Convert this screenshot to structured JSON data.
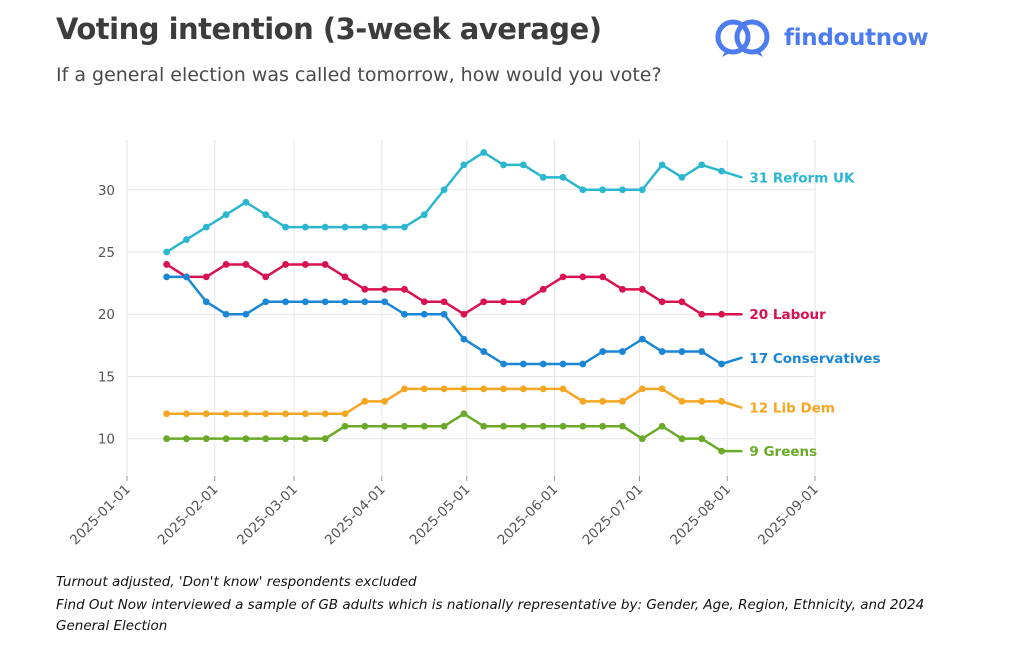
{
  "header": {
    "title": "Voting intention (3-week average)",
    "subtitle": "If a general election was called tomorrow, how would you vote?"
  },
  "logo": {
    "text": "findoutnow",
    "color": "#4c7cf0"
  },
  "footnotes": {
    "line1": "Turnout adjusted, 'Don't know' respondents excluded",
    "line2": "Find Out Now interviewed a sample of GB adults which is nationally representative by: Gender, Age, Region, Ethnicity, and 2024 General Election"
  },
  "chart_data": {
    "type": "line",
    "title": "Voting intention (3-week average)",
    "xlabel": "",
    "ylabel": "",
    "ylim": [
      7,
      34
    ],
    "yticks": [
      10,
      15,
      20,
      25,
      30
    ],
    "x_range_days": [
      0,
      243
    ],
    "xticks": [
      {
        "label": "2025-01-01",
        "day": 0
      },
      {
        "label": "2025-02-01",
        "day": 31
      },
      {
        "label": "2025-03-01",
        "day": 59
      },
      {
        "label": "2025-04-01",
        "day": 90
      },
      {
        "label": "2025-05-01",
        "day": 120
      },
      {
        "label": "2025-06-01",
        "day": 151
      },
      {
        "label": "2025-07-01",
        "day": 181
      },
      {
        "label": "2025-08-01",
        "day": 212
      },
      {
        "label": "2025-09-01",
        "day": 243
      }
    ],
    "x_days": [
      14,
      21,
      28,
      35,
      42,
      49,
      56,
      63,
      70,
      77,
      84,
      91,
      98,
      105,
      112,
      119,
      126,
      133,
      140,
      147,
      154,
      161,
      168,
      175,
      182,
      189,
      196,
      203,
      210,
      217
    ],
    "series": [
      {
        "name": "Reform UK",
        "label": "31 Reform UK",
        "color": "#2ab7cf",
        "values": [
          25,
          26,
          27,
          28,
          29,
          28,
          27,
          27,
          27,
          27,
          27,
          27,
          27,
          28,
          30,
          32,
          33,
          32,
          32,
          31,
          31,
          30,
          30,
          30,
          30,
          32,
          31,
          32,
          31.5,
          31
        ]
      },
      {
        "name": "Labour",
        "label": "20 Labour",
        "color": "#d9114f",
        "values": [
          24,
          23,
          23,
          24,
          24,
          23,
          24,
          24,
          24,
          23,
          22,
          22,
          22,
          21,
          21,
          20,
          21,
          21,
          21,
          22,
          23,
          23,
          23,
          22,
          22,
          21,
          21,
          20,
          20,
          20
        ]
      },
      {
        "name": "Conservatives",
        "label": "17 Conservatives",
        "color": "#1a86d6",
        "values": [
          23,
          23,
          21,
          20,
          20,
          21,
          21,
          21,
          21,
          21,
          21,
          21,
          20,
          20,
          20,
          18,
          17,
          16,
          16,
          16,
          16,
          16,
          17,
          17,
          18,
          17,
          17,
          17,
          16,
          16.5
        ]
      },
      {
        "name": "Lib Dem",
        "label": "12 Lib Dem",
        "color": "#f5a623",
        "values": [
          12,
          12,
          12,
          12,
          12,
          12,
          12,
          12,
          12,
          12,
          13,
          13,
          14,
          14,
          14,
          14,
          14,
          14,
          14,
          14,
          14,
          13,
          13,
          13,
          14,
          14,
          13,
          13,
          13,
          12.5
        ]
      },
      {
        "name": "Greens",
        "label": "9 Greens",
        "color": "#6aaa28",
        "values": [
          10,
          10,
          10,
          10,
          10,
          10,
          10,
          10,
          10,
          11,
          11,
          11,
          11,
          11,
          11,
          12,
          11,
          11,
          11,
          11,
          11,
          11,
          11,
          11,
          10,
          11,
          10,
          10,
          9,
          9
        ]
      }
    ]
  }
}
